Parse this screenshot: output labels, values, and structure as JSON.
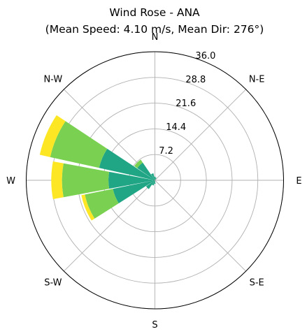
{
  "chart_data": {
    "type": "wind-rose",
    "title_line1": "Wind Rose - ANA",
    "title_line2": "(Mean Speed: 4.10 m/s, Mean Dir: 276°)",
    "direction_labels": [
      "N",
      "N-E",
      "E",
      "S-E",
      "S",
      "S-W",
      "W",
      "N-W"
    ],
    "radial_ticks": [
      "7.2",
      "14.4",
      "21.6",
      "28.8",
      "36.0"
    ],
    "rmax": 36.0,
    "colors": {
      "speed_bin_1": "#21a685",
      "speed_bin_2": "#7ad151",
      "speed_bin_3": "#fde725",
      "grid": "#b0b0b0"
    },
    "bars": [
      {
        "direction_deg": 270,
        "stacks": [
          13.0,
          26.0,
          29.0
        ]
      },
      {
        "direction_deg": 293,
        "stacks": [
          16.0,
          30.0,
          33.0
        ]
      },
      {
        "direction_deg": 248,
        "stacks": [
          12.0,
          20.0,
          21.0
        ]
      },
      {
        "direction_deg": 315,
        "stacks": [
          6.0,
          7.0,
          7.0
        ]
      },
      {
        "direction_deg": 225,
        "stacks": [
          3.0,
          3.0,
          3.0
        ]
      },
      {
        "direction_deg": 338,
        "stacks": [
          2.0,
          2.0,
          2.0
        ]
      },
      {
        "direction_deg": 203,
        "stacks": [
          1.5,
          1.5,
          1.5
        ]
      },
      {
        "direction_deg": 180,
        "stacks": [
          1.0,
          1.0,
          1.0
        ]
      },
      {
        "direction_deg": 0,
        "stacks": [
          1.0,
          1.0,
          1.0
        ]
      },
      {
        "direction_deg": 23,
        "stacks": [
          0.8,
          0.8,
          0.8
        ]
      }
    ]
  }
}
